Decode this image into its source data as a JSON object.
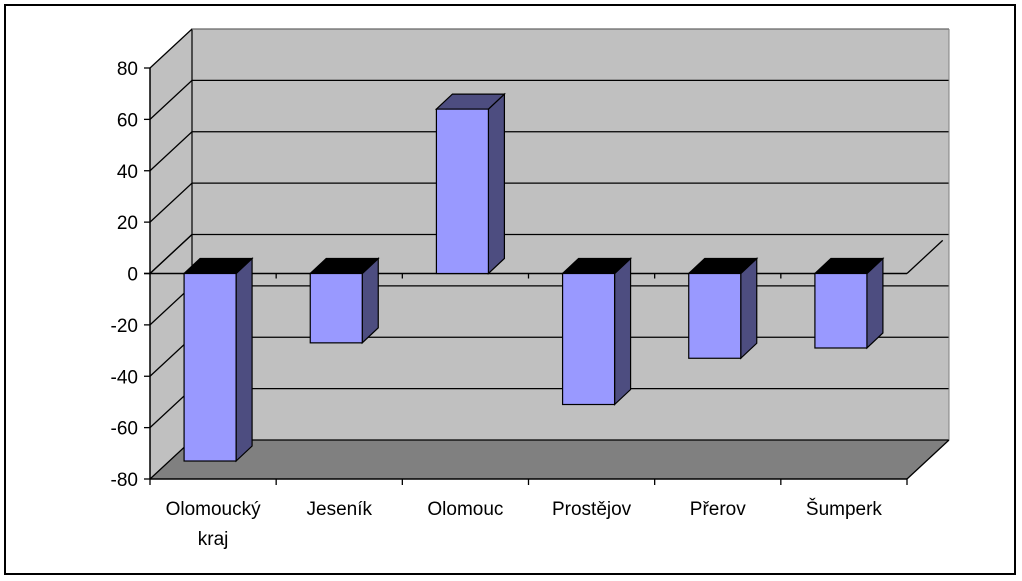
{
  "chart_data": {
    "type": "bar",
    "style": "3d-column",
    "categories": [
      [
        "Olomoucký",
        "kraj"
      ],
      [
        "Jeseník"
      ],
      [
        "Olomouc"
      ],
      [
        "Prostějov"
      ],
      [
        "Přerov"
      ],
      [
        "Šumperk"
      ]
    ],
    "values": [
      -73,
      -27,
      64,
      -51,
      -33,
      -29
    ],
    "ylim": [
      -80,
      80
    ],
    "yticks": [
      80,
      60,
      40,
      20,
      0,
      -20,
      -40,
      -60,
      -80
    ],
    "grid": true,
    "legend": "none",
    "title": "",
    "xlabel": "",
    "ylabel": ""
  },
  "colors": {
    "back_wall": "#c0c0c0",
    "floor": "#808080",
    "bar_front": "#9999ff",
    "bar_side": "#4d4d80",
    "bar_top": "#000000",
    "grid": "#000000"
  }
}
